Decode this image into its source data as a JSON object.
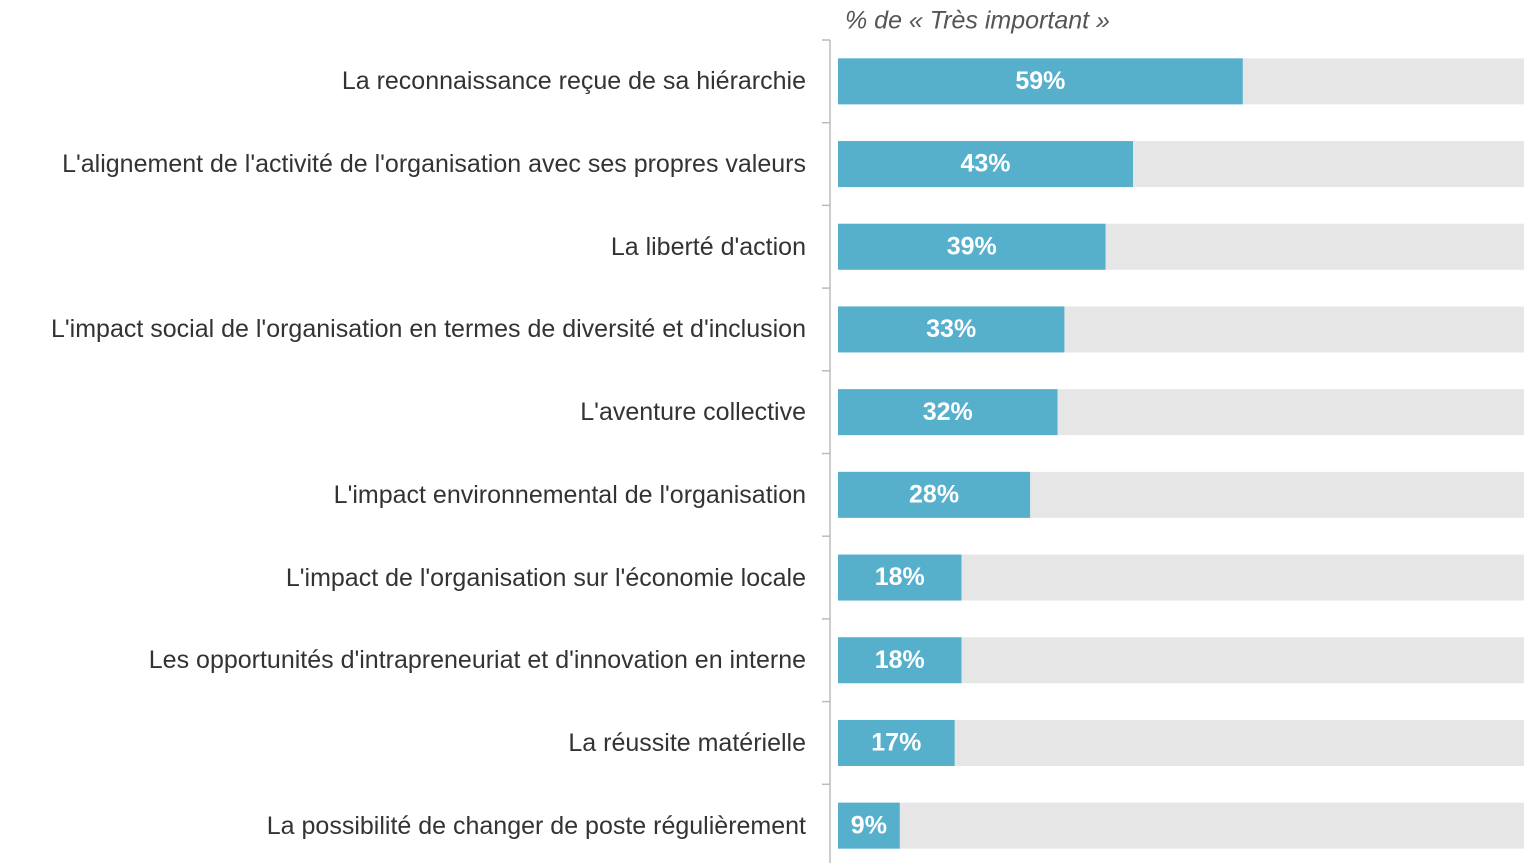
{
  "chart_data": {
    "type": "barh",
    "title": "% de « Très important »",
    "categories": [
      "La reconnaissance reçue de sa hiérarchie",
      "L'alignement de l'activité de l'organisation avec ses propres valeurs",
      "La liberté d'action",
      "L'impact social de l'organisation en termes de diversité et d'inclusion",
      "L'aventure collective",
      "L'impact environnemental de l'organisation",
      "L'impact de l'organisation sur l'économie locale",
      "Les opportunités d'intrapreneuriat et d'innovation en interne",
      "La réussite matérielle",
      "La possibilité de changer de poste régulièrement"
    ],
    "values": [
      59,
      43,
      39,
      33,
      32,
      28,
      18,
      18,
      17,
      9
    ],
    "value_labels": [
      "59%",
      "43%",
      "39%",
      "33%",
      "32%",
      "28%",
      "18%",
      "18%",
      "17%",
      "9%"
    ],
    "color": "#56b0cc",
    "track_color": "#e6e6e6",
    "xlim": [
      0,
      100
    ]
  }
}
